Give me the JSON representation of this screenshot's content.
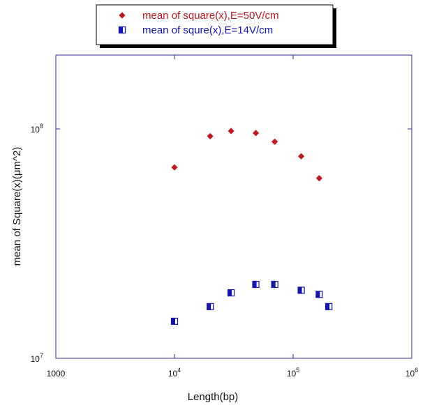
{
  "chart_data": {
    "type": "scatter",
    "title": "",
    "xlabel": "Length(bp)",
    "ylabel": "mean of Square(x)(μm^2)",
    "xscale": "log",
    "yscale": "log",
    "xlim": [
      1000,
      1000000
    ],
    "ylim": [
      10000000,
      210000000
    ],
    "grid": false,
    "legend_position": "top-center",
    "x_ticks": [
      {
        "value": 1000,
        "base": "1000",
        "exp": ""
      },
      {
        "value": 10000,
        "base": "10",
        "exp": "4"
      },
      {
        "value": 100000,
        "base": "10",
        "exp": "5"
      },
      {
        "value": 1000000,
        "base": "10",
        "exp": "6"
      }
    ],
    "y_ticks": [
      {
        "value": 10000000,
        "base": "10",
        "exp": "7"
      },
      {
        "value": 100000000,
        "base": "10",
        "exp": "8"
      }
    ],
    "series": [
      {
        "name": "mean of square(x),E=50V/cm",
        "color": "#c0161e",
        "marker": "diamond",
        "x": [
          10000,
          20000,
          30000,
          48500,
          70000,
          117000,
          166000
        ],
        "y": [
          68000000,
          93000000,
          98000000,
          96000000,
          88000000,
          76000000,
          61000000
        ]
      },
      {
        "name": "mean of squre(x),E=14V/cm",
        "color": "#1414b4",
        "marker": "square",
        "x": [
          10000,
          20000,
          30000,
          48500,
          70000,
          117000,
          166000,
          200000
        ],
        "y": [
          14500000,
          16800000,
          19300000,
          21000000,
          21000000,
          19800000,
          19000000,
          16800000
        ]
      }
    ]
  }
}
